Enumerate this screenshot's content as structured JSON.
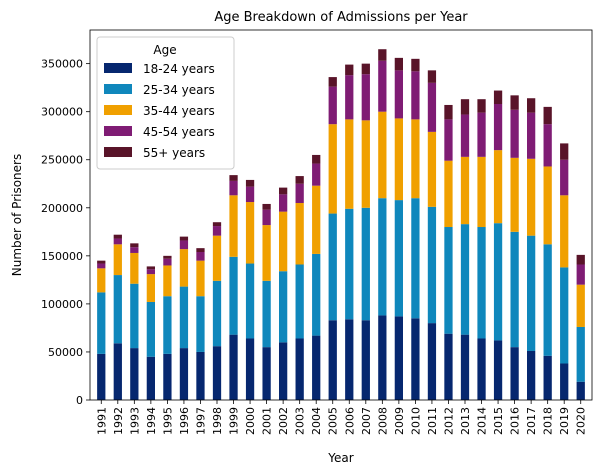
{
  "chart_data": {
    "type": "bar",
    "stacked": true,
    "title": "Age Breakdown of Admissions per Year",
    "xlabel": "Year",
    "ylabel": "Number of Prisoners",
    "ylim": [
      0,
      385000
    ],
    "yticks": [
      0,
      50000,
      100000,
      150000,
      200000,
      250000,
      300000,
      350000
    ],
    "legend_title": "Age",
    "legend_position": "top-left",
    "grid": false,
    "categories": [
      "1991",
      "1992",
      "1993",
      "1994",
      "1995",
      "1996",
      "1997",
      "1998",
      "1999",
      "2000",
      "2001",
      "2002",
      "2003",
      "2004",
      "2005",
      "2006",
      "2007",
      "2008",
      "2009",
      "2010",
      "2011",
      "2012",
      "2013",
      "2014",
      "2015",
      "2016",
      "2017",
      "2018",
      "2019",
      "2020"
    ],
    "series": [
      {
        "name": "18-24 years",
        "color": "#06276f",
        "values": [
          48000,
          59000,
          54000,
          45000,
          48000,
          54000,
          50000,
          56000,
          68000,
          64000,
          55000,
          60000,
          64000,
          67000,
          83000,
          84000,
          83000,
          88000,
          87000,
          85000,
          80000,
          69000,
          68000,
          64000,
          62000,
          55000,
          51000,
          46000,
          38000,
          19000
        ]
      },
      {
        "name": "25-34 years",
        "color": "#0f87bc",
        "values": [
          64000,
          71000,
          67000,
          57000,
          60000,
          64000,
          58000,
          68000,
          81000,
          78000,
          69000,
          74000,
          77000,
          85000,
          111000,
          115000,
          117000,
          122000,
          121000,
          125000,
          121000,
          111000,
          115000,
          116000,
          122000,
          120000,
          120000,
          116000,
          100000,
          57000
        ]
      },
      {
        "name": "35-44 years",
        "color": "#f0a000",
        "values": [
          25000,
          32000,
          32000,
          29000,
          32000,
          39000,
          37000,
          47000,
          64000,
          64000,
          58000,
          62000,
          64000,
          71000,
          93000,
          93000,
          91000,
          90000,
          85000,
          82000,
          78000,
          69000,
          70000,
          73000,
          76000,
          77000,
          80000,
          81000,
          75000,
          44000
        ]
      },
      {
        "name": "45-54 years",
        "color": "#7f1c74",
        "values": [
          5000,
          6000,
          6000,
          5000,
          7000,
          9000,
          9000,
          10000,
          15000,
          16000,
          16000,
          18000,
          20000,
          23000,
          39000,
          46000,
          48000,
          53000,
          50000,
          50000,
          51000,
          43000,
          44000,
          46000,
          48000,
          50000,
          48000,
          44000,
          37000,
          21000
        ]
      },
      {
        "name": "55+ years",
        "color": "#591429",
        "values": [
          3000,
          4000,
          4000,
          3000,
          3000,
          4000,
          4000,
          4000,
          6000,
          7000,
          6000,
          7000,
          8000,
          9000,
          10000,
          11000,
          11000,
          12000,
          13000,
          13000,
          13000,
          15000,
          16000,
          14000,
          14000,
          15000,
          15000,
          18000,
          17000,
          10000
        ]
      }
    ]
  }
}
